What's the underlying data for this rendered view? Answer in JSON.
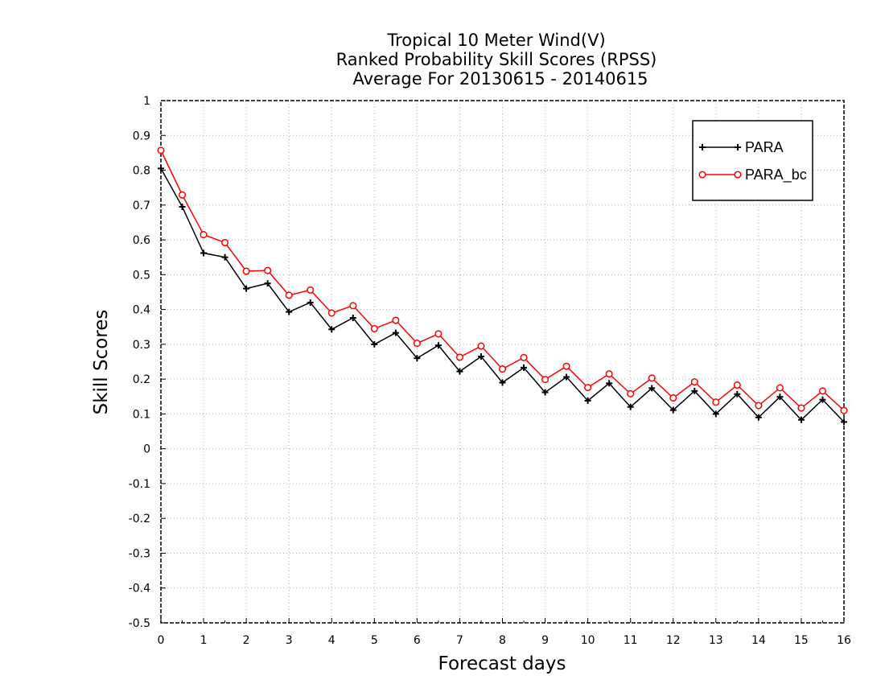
{
  "chart_data": {
    "type": "line",
    "title": [
      "Tropical 10 Meter Wind(V)",
      "Ranked Probability Skill Scores (RPSS)",
      "Average For 20130615 - 20140615"
    ],
    "xlabel": "Forecast days",
    "ylabel": "Skill Scores",
    "xlim": [
      0,
      16
    ],
    "ylim": [
      -0.5,
      1
    ],
    "xticks": [
      "0",
      "1",
      "2",
      "3",
      "4",
      "5",
      "6",
      "7",
      "8",
      "9",
      "10",
      "11",
      "12",
      "13",
      "14",
      "15",
      "16"
    ],
    "yticks": [
      "1",
      "0.9",
      "0.8",
      "0.7",
      "0.6",
      "0.5",
      "0.4",
      "0.3",
      "0.2",
      "0.1",
      "0",
      "-0.1",
      "-0.2",
      "-0.3",
      "-0.4",
      "-0.5"
    ],
    "grid": true,
    "legend_position": "top-right",
    "x": [
      0,
      0.5,
      1,
      1.5,
      2,
      2.5,
      3,
      3.5,
      4,
      4.5,
      5,
      5.5,
      6,
      6.5,
      7,
      7.5,
      8,
      8.5,
      9,
      9.5,
      10,
      10.5,
      11,
      11.5,
      12,
      12.5,
      13,
      13.5,
      14,
      14.5,
      15,
      15.5,
      16
    ],
    "series": [
      {
        "name": "PARA",
        "color": "#000000",
        "marker": "plus",
        "values": [
          0.805,
          0.695,
          0.562,
          0.55,
          0.46,
          0.475,
          0.393,
          0.42,
          0.343,
          0.376,
          0.3,
          0.333,
          0.26,
          0.297,
          0.222,
          0.265,
          0.19,
          0.233,
          0.162,
          0.206,
          0.138,
          0.188,
          0.12,
          0.174,
          0.111,
          0.166,
          0.1,
          0.157,
          0.09,
          0.149,
          0.083,
          0.141,
          0.077
        ]
      },
      {
        "name": "PARA_bc",
        "color": "#ff0000",
        "marker": "circle",
        "values": [
          0.857,
          0.729,
          0.615,
          0.592,
          0.51,
          0.512,
          0.441,
          0.456,
          0.39,
          0.411,
          0.345,
          0.369,
          0.303,
          0.33,
          0.263,
          0.295,
          0.229,
          0.262,
          0.199,
          0.237,
          0.176,
          0.215,
          0.158,
          0.203,
          0.146,
          0.192,
          0.134,
          0.183,
          0.124,
          0.175,
          0.117,
          0.166,
          0.11
        ]
      }
    ]
  }
}
